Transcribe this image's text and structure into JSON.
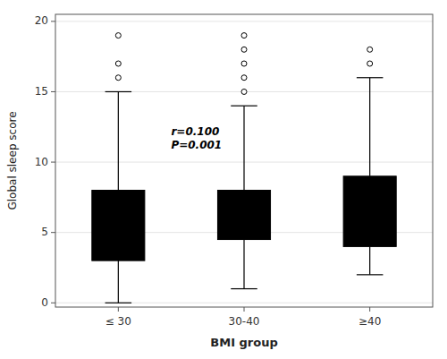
{
  "chart_data": {
    "type": "box",
    "categories": [
      "≤ 30",
      "30-40",
      "≥40"
    ],
    "boxes": [
      {
        "q1": 3.0,
        "q3": 8.0,
        "whisker_low": 0.0,
        "whisker_high": 15.0,
        "outliers": [
          16.0,
          17.0,
          19.0
        ]
      },
      {
        "q1": 4.5,
        "q3": 8.0,
        "whisker_low": 1.0,
        "whisker_high": 14.0,
        "outliers": [
          15.0,
          16.0,
          17.0,
          18.0,
          19.0
        ]
      },
      {
        "q1": 4.0,
        "q3": 9.0,
        "whisker_low": 2.0,
        "whisker_high": 16.0,
        "outliers": [
          17.0,
          18.0
        ]
      }
    ],
    "ylabel": "Global sleep score",
    "xlabel": "BMI group",
    "annotation": "r=0.100\nP=0.001",
    "ylim": [
      -0.3,
      20.5
    ],
    "yticks": [
      0,
      5,
      10,
      15,
      20
    ],
    "color": "#000000",
    "marker": "circle"
  }
}
